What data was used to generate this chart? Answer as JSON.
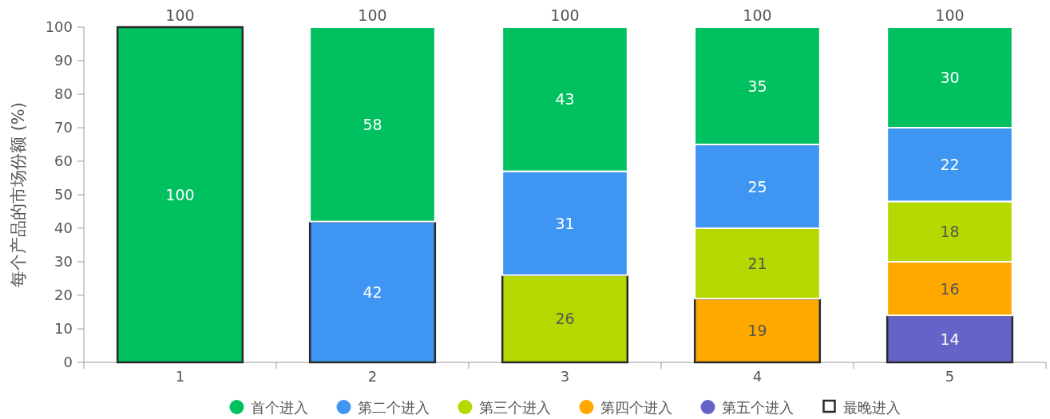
{
  "chart_data": {
    "type": "bar",
    "stacked": true,
    "ylabel": "每个产品的市场份额 (%)",
    "categories": [
      "1",
      "2",
      "3",
      "4",
      "5"
    ],
    "series": [
      {
        "name": "第五个进入",
        "color": "#6464c8",
        "values": [
          null,
          null,
          null,
          null,
          14
        ]
      },
      {
        "name": "第四个进入",
        "color": "#ffa800",
        "values": [
          null,
          null,
          null,
          19,
          16
        ]
      },
      {
        "name": "第三个进入",
        "color": "#b5d900",
        "values": [
          null,
          null,
          26,
          21,
          18
        ]
      },
      {
        "name": "第二个进入",
        "color": "#3f95f2",
        "values": [
          null,
          42,
          31,
          25,
          22
        ]
      },
      {
        "name": "首个进入",
        "color": "#00c060",
        "values": [
          100,
          58,
          43,
          35,
          30
        ]
      },
      {
        "name": "最晚进入",
        "color": "#2a2a2a",
        "values": [
          null,
          null,
          null,
          null,
          null
        ]
      }
    ],
    "ylim": [
      0,
      100
    ],
    "yticks": [
      0,
      10,
      20,
      30,
      40,
      50,
      60,
      70,
      80,
      90,
      100
    ],
    "grid": false,
    "legend": "bottom",
    "data_labels": true,
    "totals": [
      "100",
      "100",
      "100",
      "100",
      "100"
    ]
  }
}
